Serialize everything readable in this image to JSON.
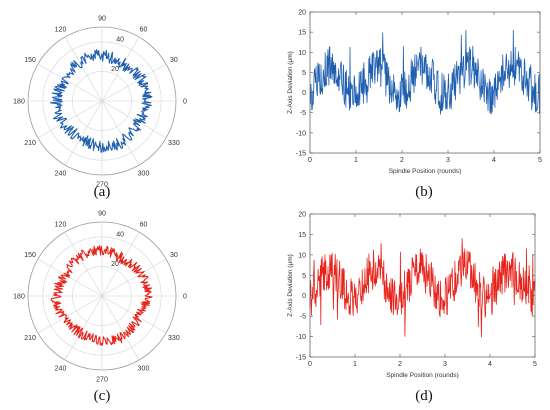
{
  "captions": [
    "(a)",
    "(b)",
    "(c)",
    "(d)"
  ],
  "chart_data": [
    {
      "type": "polar-line",
      "panel": "(a)",
      "color": "#1f5fb0",
      "theta_tick_labels": [
        "0",
        "30",
        "60",
        "90",
        "120",
        "150",
        "180",
        "210",
        "240",
        "270",
        "300",
        "330"
      ],
      "r_tick_labels": [
        "20",
        "40"
      ],
      "r_ticks": [
        20,
        40
      ],
      "rlim": [
        0,
        50
      ],
      "base_radius": 30,
      "noise_amplitude": 4,
      "lobes": 4,
      "grid": true
    },
    {
      "type": "line",
      "panel": "(b)",
      "color": "#1f5fb0",
      "xlabel": "Spindle Position (rounds)",
      "ylabel": "Z-Axis Deviation (μm)",
      "xlim": [
        0,
        5
      ],
      "ylim": [
        -15,
        20
      ],
      "x_ticks": [
        "0",
        "1",
        "2",
        "3",
        "4",
        "5"
      ],
      "y_ticks": [
        "-15",
        "-10",
        "-5",
        "0",
        "5",
        "10",
        "15",
        "20"
      ],
      "y_tick_values": [
        -15,
        -10,
        -5,
        0,
        5,
        10,
        15,
        20
      ],
      "mean": 3,
      "periodic_amplitude": 3.5,
      "periods_per_round": 1,
      "noise_amplitude": 5,
      "samples": 500,
      "approx_max": 15.5,
      "approx_min": -11,
      "grid": false
    },
    {
      "type": "polar-line",
      "panel": "(c)",
      "color": "#e8231b",
      "theta_tick_labels": [
        "0",
        "30",
        "60",
        "90",
        "120",
        "150",
        "180",
        "210",
        "240",
        "270",
        "300",
        "330"
      ],
      "r_tick_labels": [
        "20",
        "40"
      ],
      "r_ticks": [
        20,
        40
      ],
      "rlim": [
        0,
        50
      ],
      "base_radius": 30,
      "noise_amplitude": 3.5,
      "lobes": 4,
      "grid": true
    },
    {
      "type": "line",
      "panel": "(d)",
      "color": "#e8231b",
      "xlabel": "Spindle Position (rounds)",
      "ylabel": "Z-Axis Deviation (μm)",
      "xlim": [
        0,
        5
      ],
      "ylim": [
        -15,
        20
      ],
      "x_ticks": [
        "0",
        "1",
        "2",
        "3",
        "4",
        "5"
      ],
      "y_ticks": [
        "-15",
        "-10",
        "-5",
        "0",
        "5",
        "10",
        "15",
        "20"
      ],
      "y_tick_values": [
        -15,
        -10,
        -5,
        0,
        5,
        10,
        15,
        20
      ],
      "mean": 3,
      "periodic_amplitude": 3.5,
      "periods_per_round": 1,
      "noise_amplitude": 5,
      "samples": 500,
      "approx_max": 15,
      "approx_min": -11,
      "grid": false
    }
  ]
}
